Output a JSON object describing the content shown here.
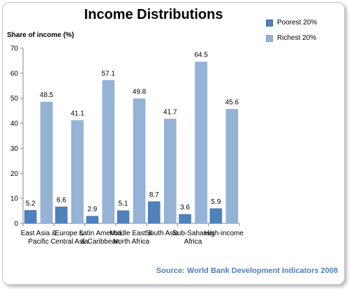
{
  "chart_data": {
    "type": "bar",
    "title": "Income Distributions",
    "ylabel": "Share of income (%)",
    "xlabel": "",
    "ylim": [
      0,
      70
    ],
    "yticks": [
      0,
      10,
      20,
      30,
      40,
      50,
      60,
      70
    ],
    "categories": [
      "East Asia & Pacific",
      "Europe & Central Asia",
      "Latin America & Caribbean",
      "Middle East & North Africa",
      "South Asia",
      "Sub-Saharan Africa",
      "High-income"
    ],
    "series": [
      {
        "name": "Poorest 20%",
        "values": [
          5.2,
          6.6,
          2.9,
          5.1,
          8.7,
          3.6,
          5.9
        ],
        "color": "#4f81bd",
        "dark": "#3c6a9f"
      },
      {
        "name": "Richest 20%",
        "values": [
          48.5,
          41.1,
          57.1,
          49.8,
          41.7,
          64.5,
          45.6
        ],
        "color": "#95b3d7",
        "dark": "#7f9ec4"
      }
    ],
    "legend_position": "top-right",
    "grid": false
  },
  "source": "Source: World Bank Development Indicators 2008"
}
